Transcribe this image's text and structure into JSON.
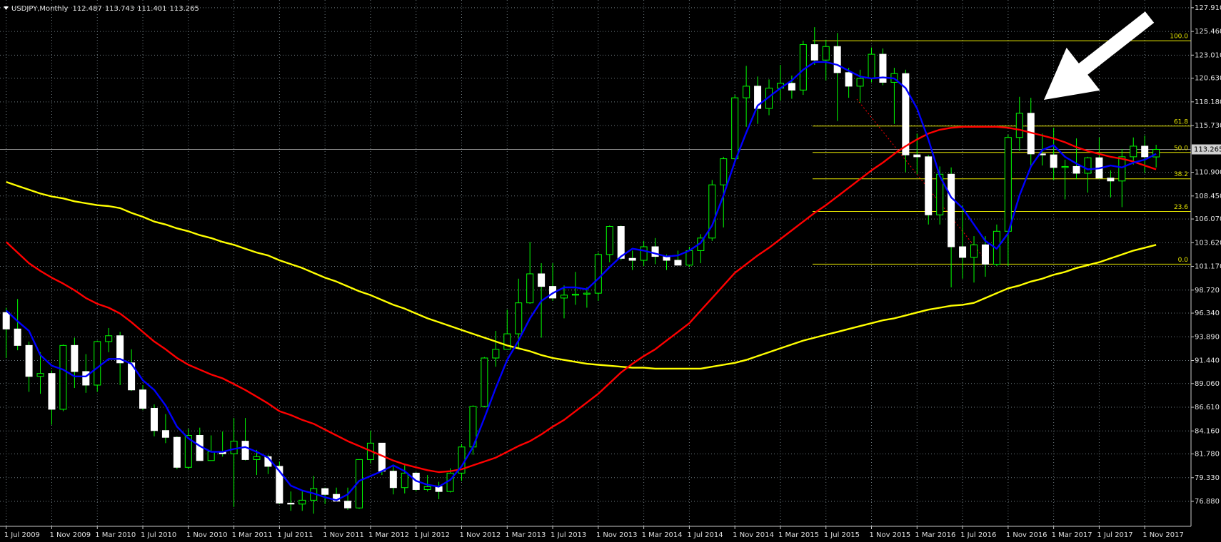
{
  "chart_data": {
    "type": "candlestick",
    "title": "USDJPY,Monthly",
    "categories": [
      "1 Jul 2009",
      null,
      null,
      null,
      "1 Nov 2009",
      null,
      null,
      null,
      "1 Mar 2010",
      null,
      null,
      null,
      "1 Jul 2010",
      null,
      null,
      null,
      "1 Nov 2010",
      null,
      null,
      null,
      "1 Mar 2011",
      null,
      null,
      null,
      "1 Jul 2011",
      null,
      null,
      null,
      "1 Nov 2011",
      null,
      null,
      null,
      "1 Mar 2012",
      null,
      null,
      null,
      "1 Jul 2012",
      null,
      null,
      null,
      "1 Nov 2012",
      null,
      null,
      null,
      "1 Mar 2013",
      null,
      null,
      null,
      "1 Jul 2013",
      null,
      null,
      null,
      "1 Nov 2013",
      null,
      null,
      null,
      "1 Mar 2014",
      null,
      null,
      null,
      "1 Jul 2014",
      null,
      null,
      null,
      "1 Nov 2014",
      null,
      null,
      null,
      "1 Mar 2015",
      null,
      null,
      null,
      "1 Jul 2015",
      null,
      null,
      null,
      "1 Nov 2015",
      null,
      null,
      null,
      "1 Mar 2016",
      null,
      null,
      null,
      "1 Jul 2016",
      null,
      null,
      null,
      "1 Nov 2016",
      null,
      null,
      null,
      "1 Mar 2017",
      null,
      null,
      null,
      "1 Jul 2017",
      null,
      null,
      null,
      "1 Nov 2017",
      null
    ],
    "open": [
      96.4,
      94.7,
      93.0,
      89.8,
      90.1,
      86.4,
      93.0,
      90.3,
      88.9,
      93.4,
      94.0,
      91.2,
      88.4,
      86.5,
      84.2,
      83.5,
      80.4,
      83.7,
      81.1,
      82.0,
      81.8,
      83.1,
      81.2,
      81.5,
      80.5,
      76.7,
      76.6,
      77.0,
      78.2,
      77.6,
      76.9,
      76.2,
      81.2,
      82.9,
      80.0,
      78.3,
      79.8,
      78.1,
      78.4,
      77.9,
      79.8,
      82.5,
      86.7,
      91.7,
      92.6,
      94.2,
      97.4,
      100.4,
      99.1,
      97.9,
      98.2,
      98.3,
      98.4,
      102.4,
      105.3,
      102.0,
      101.8,
      103.2,
      102.2,
      101.8,
      101.3,
      102.8,
      104.1,
      109.6,
      112.3,
      118.6,
      119.8,
      117.5,
      119.6,
      120.1,
      119.4,
      124.1,
      122.5,
      123.9,
      121.2,
      119.8,
      120.6,
      123.1,
      120.2,
      121.1,
      112.7,
      112.5,
      106.5,
      110.7,
      103.2,
      102.1,
      103.4,
      101.4,
      104.8,
      114.5,
      117.0,
      112.8,
      112.7,
      111.4,
      111.5,
      110.8,
      112.4,
      110.3,
      110.0,
      112.5,
      113.6,
      112.487
    ],
    "high": [
      96.9,
      97.8,
      93.4,
      92.3,
      90.4,
      93.1,
      93.8,
      92.1,
      93.5,
      94.8,
      94.4,
      92.6,
      88.9,
      86.9,
      85.9,
      83.6,
      84.4,
      84.5,
      83.7,
      84.1,
      85.5,
      85.5,
      82.2,
      81.7,
      81.0,
      77.9,
      77.9,
      79.5,
      78.3,
      78.3,
      78.3,
      81.2,
      84.2,
      82.9,
      80.5,
      80.6,
      79.9,
      79.6,
      78.9,
      80.3,
      82.8,
      86.8,
      91.8,
      94.5,
      96.7,
      99.9,
      103.7,
      101.5,
      101.5,
      99.2,
      100.6,
      99.0,
      102.6,
      105.4,
      105.4,
      102.8,
      103.8,
      104.1,
      102.4,
      102.8,
      103.2,
      104.5,
      110.1,
      112.5,
      118.9,
      121.9,
      120.8,
      120.5,
      122.0,
      120.9,
      124.5,
      125.9,
      124.6,
      125.3,
      121.7,
      121.5,
      123.8,
      123.7,
      121.7,
      121.5,
      114.9,
      112.7,
      111.5,
      111.4,
      107.5,
      104.3,
      104.3,
      105.5,
      114.8,
      118.7,
      118.6,
      114.9,
      115.5,
      112.2,
      114.4,
      112.5,
      114.5,
      111.1,
      113.3,
      114.5,
      114.7,
      113.743
    ],
    "low": [
      91.7,
      92.5,
      88.2,
      88.0,
      84.8,
      86.2,
      88.6,
      88.1,
      88.2,
      92.3,
      88.9,
      88.3,
      86.3,
      83.6,
      82.9,
      80.2,
      80.2,
      81.1,
      81.1,
      81.5,
      76.3,
      81.1,
      79.6,
      79.7,
      76.6,
      75.9,
      75.9,
      75.6,
      76.6,
      76.9,
      76.0,
      76.1,
      80.8,
      79.6,
      77.6,
      77.7,
      77.9,
      77.9,
      77.1,
      77.8,
      79.0,
      81.7,
      86.6,
      90.8,
      92.6,
      92.6,
      97.3,
      93.8,
      97.6,
      95.8,
      97.2,
      96.9,
      97.6,
      101.6,
      101.8,
      100.8,
      101.2,
      101.4,
      100.8,
      101.3,
      101.1,
      101.5,
      103.8,
      105.2,
      112.0,
      115.6,
      115.9,
      116.8,
      118.3,
      118.5,
      118.9,
      122.0,
      120.4,
      116.2,
      118.6,
      118.1,
      120.2,
      119.9,
      115.9,
      110.9,
      110.7,
      105.5,
      105.5,
      99.0,
      99.9,
      99.5,
      100.1,
      101.2,
      101.2,
      113.1,
      111.6,
      111.6,
      110.1,
      108.1,
      110.2,
      108.8,
      110.2,
      108.3,
      107.3,
      111.7,
      110.8,
      111.401
    ],
    "close": [
      94.7,
      93.0,
      89.8,
      90.1,
      86.4,
      93.0,
      90.3,
      88.9,
      93.4,
      94.0,
      91.2,
      88.4,
      86.5,
      84.2,
      83.5,
      80.4,
      83.7,
      81.1,
      82.0,
      81.8,
      83.1,
      81.2,
      81.5,
      80.5,
      76.7,
      76.6,
      77.0,
      78.2,
      77.6,
      76.9,
      76.2,
      81.2,
      82.9,
      80.0,
      78.3,
      79.8,
      78.1,
      78.4,
      77.9,
      79.8,
      82.5,
      86.7,
      91.7,
      92.6,
      94.2,
      97.4,
      100.4,
      99.1,
      97.9,
      98.2,
      98.3,
      98.4,
      102.4,
      105.3,
      102.0,
      101.8,
      103.2,
      102.2,
      101.8,
      101.3,
      102.8,
      104.1,
      109.6,
      112.3,
      118.6,
      119.8,
      117.5,
      119.6,
      120.1,
      119.4,
      124.1,
      122.5,
      123.9,
      121.2,
      119.8,
      120.6,
      123.1,
      120.2,
      121.1,
      112.7,
      112.5,
      106.5,
      110.7,
      103.2,
      102.1,
      103.4,
      101.4,
      104.8,
      114.5,
      117.0,
      112.8,
      112.7,
      111.4,
      111.5,
      110.8,
      112.4,
      110.3,
      110.0,
      112.5,
      113.6,
      112.5,
      113.265
    ],
    "bull_color": "#000000",
    "bear_color": "#ffffff",
    "wick_color": "#00ff00",
    "series": [
      {
        "color": "#ffff00",
        "values": [
          109.9,
          109.5,
          109.1,
          108.7,
          108.4,
          108.2,
          107.9,
          107.7,
          107.5,
          107.4,
          107.2,
          106.7,
          106.3,
          105.8,
          105.5,
          105.1,
          104.8,
          104.4,
          104.1,
          103.7,
          103.4,
          103.0,
          102.6,
          102.3,
          101.8,
          101.4,
          101.0,
          100.5,
          100.0,
          99.6,
          99.1,
          98.6,
          98.2,
          97.7,
          97.2,
          96.8,
          96.3,
          95.8,
          95.4,
          95.0,
          94.6,
          94.2,
          93.8,
          93.4,
          93.0,
          92.7,
          92.4,
          92.0,
          91.7,
          91.5,
          91.3,
          91.1,
          91.0,
          90.9,
          90.8,
          90.7,
          90.7,
          90.6,
          90.6,
          90.6,
          90.6,
          90.6,
          90.8,
          91.0,
          91.2,
          91.5,
          91.9,
          92.3,
          92.7,
          93.1,
          93.5,
          93.8,
          94.1,
          94.4,
          94.7,
          95.0,
          95.3,
          95.6,
          95.8,
          96.1,
          96.4,
          96.7,
          96.9,
          97.1,
          97.2,
          97.4,
          97.9,
          98.4,
          98.9,
          99.2,
          99.6,
          99.9,
          100.3,
          100.6,
          101.0,
          101.3,
          101.6,
          102.0,
          102.4,
          102.8,
          103.1,
          103.4
        ]
      },
      {
        "color": "#ff0000",
        "values": [
          103.7,
          102.6,
          101.5,
          100.7,
          100.0,
          99.4,
          98.7,
          97.9,
          97.3,
          96.9,
          96.3,
          95.4,
          94.4,
          93.4,
          92.6,
          91.7,
          91.0,
          90.5,
          90.0,
          89.6,
          89.0,
          88.4,
          87.7,
          87.0,
          86.2,
          85.8,
          85.3,
          84.9,
          84.3,
          83.7,
          83.1,
          82.6,
          82.1,
          81.6,
          81.1,
          80.7,
          80.4,
          80.1,
          79.9,
          80.0,
          80.2,
          80.6,
          81.0,
          81.4,
          82.0,
          82.6,
          83.1,
          83.8,
          84.6,
          85.3,
          86.2,
          87.1,
          88.0,
          89.1,
          90.2,
          91.1,
          91.9,
          92.6,
          93.5,
          94.4,
          95.3,
          96.6,
          97.9,
          99.2,
          100.5,
          101.4,
          102.3,
          103.1,
          104.0,
          104.9,
          105.8,
          106.7,
          107.5,
          108.4,
          109.3,
          110.2,
          111.1,
          111.9,
          112.8,
          113.6,
          114.3,
          114.9,
          115.3,
          115.5,
          115.6,
          115.6,
          115.6,
          115.6,
          115.5,
          115.3,
          115.0,
          114.7,
          114.4,
          114.0,
          113.5,
          113.1,
          112.8,
          112.5,
          112.3,
          112.0,
          111.6,
          111.2
        ]
      },
      {
        "color": "#0000ff",
        "values": [
          96.6,
          95.5,
          94.5,
          92.0,
          90.9,
          90.5,
          89.8,
          89.8,
          90.7,
          91.6,
          91.6,
          91.1,
          89.4,
          88.4,
          86.8,
          84.6,
          83.4,
          82.6,
          82.0,
          82.0,
          82.3,
          82.5,
          82.0,
          81.4,
          80.0,
          78.5,
          78.0,
          77.7,
          77.3,
          77.0,
          77.6,
          79.0,
          79.5,
          80.0,
          80.6,
          80.0,
          79.0,
          78.6,
          78.4,
          79.1,
          80.5,
          82.5,
          85.5,
          88.6,
          91.5,
          93.5,
          95.8,
          97.6,
          98.4,
          99.0,
          99.0,
          98.8,
          99.9,
          101.1,
          102.2,
          103.0,
          102.8,
          102.5,
          102.2,
          102.3,
          102.8,
          103.6,
          105.4,
          108.5,
          112.0,
          115.0,
          117.8,
          118.7,
          119.6,
          120.4,
          121.5,
          122.3,
          122.3,
          122.0,
          121.4,
          120.8,
          120.6,
          120.7,
          120.6,
          119.6,
          117.5,
          114.3,
          110.5,
          108.3,
          107.2,
          105.5,
          103.8,
          103.0,
          104.6,
          108.5,
          111.5,
          113.2,
          113.7,
          112.5,
          111.8,
          111.2,
          111.3,
          111.6,
          111.4,
          111.9,
          112.2,
          112.8
        ]
      }
    ],
    "fibonacci": {
      "high": 124.5,
      "low": 101.4,
      "color": "#e6e600",
      "levels": [
        {
          "value": 100,
          "label": "100.0"
        },
        61.8,
        {
          "value": 50,
          "label": "50.0"
        },
        38.2,
        23.6,
        {
          "value": 0,
          "label": "0.0"
        }
      ]
    },
    "ylim": [
      74.3,
      128.71
    ],
    "yticks": [
      {
        "value": 127.91,
        "label": "127.910"
      },
      {
        "value": 125.46,
        "label": "125.460"
      },
      {
        "value": 123.01,
        "label": "123.010"
      },
      {
        "value": 120.63,
        "label": "120.630"
      },
      {
        "value": 118.18,
        "label": "118.180"
      },
      {
        "value": 115.73,
        "label": "115.730"
      },
      {
        "value": 110.9,
        "label": "110.900"
      },
      {
        "value": 108.45,
        "label": "108.450"
      },
      {
        "value": 106.07,
        "label": "106.070"
      },
      {
        "value": 103.62,
        "label": "103.620"
      },
      {
        "value": 101.17,
        "label": "101.170"
      },
      {
        "value": 98.72,
        "label": "98.720"
      },
      {
        "value": 96.34,
        "label": "96.340"
      },
      {
        "value": 93.89,
        "label": "93.890"
      },
      {
        "value": 91.44,
        "label": "91.440"
      },
      {
        "value": 89.06,
        "label": "89.060"
      },
      {
        "value": 86.61,
        "label": "86.610"
      },
      {
        "value": 84.16,
        "label": "84.160"
      },
      {
        "value": 81.78,
        "label": "81.780"
      },
      {
        "value": 79.33,
        "label": "79.330"
      },
      {
        "value": 76.88,
        "label": "76.880"
      }
    ],
    "grid": true,
    "grid_color": "#6e7a80",
    "background": "#000000"
  }
}
